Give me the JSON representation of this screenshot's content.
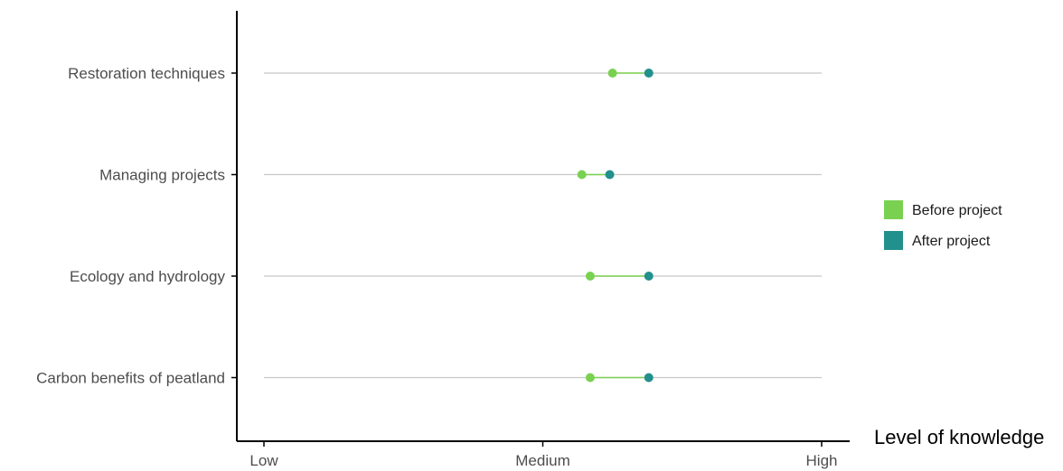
{
  "chart_data": {
    "type": "dumbbell",
    "xlabel": "Level of knowledge",
    "xlim": [
      1,
      3
    ],
    "x_ticks": [
      {
        "value": 1,
        "label": "Low"
      },
      {
        "value": 2,
        "label": "Medium"
      },
      {
        "value": 3,
        "label": "High"
      }
    ],
    "categories": [
      "Restoration techniques",
      "Managing projects",
      "Ecology and hydrology",
      "Carbon benefits of peatland"
    ],
    "series": [
      {
        "name": "Before project",
        "color": "#7ad151",
        "values": [
          2.25,
          2.14,
          2.17,
          2.17
        ]
      },
      {
        "name": "After project",
        "color": "#22908c",
        "values": [
          2.38,
          2.24,
          2.38,
          2.38
        ]
      }
    ],
    "grid": "horizontal-major",
    "legend_position": "right"
  }
}
